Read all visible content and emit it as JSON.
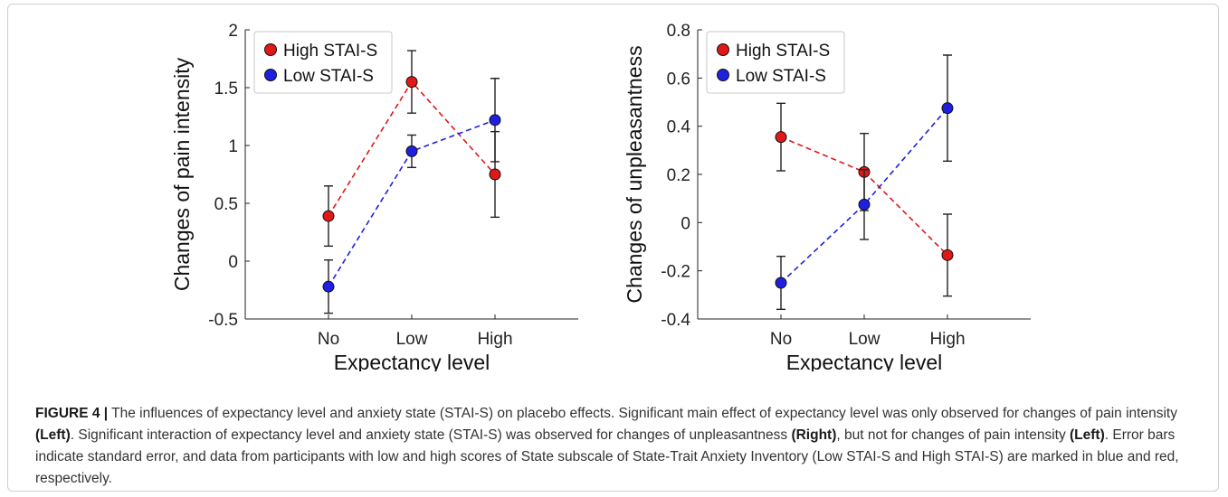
{
  "colors": {
    "high": "#e01818",
    "low": "#1f1fe0",
    "axis": "#222222"
  },
  "chart_data": [
    {
      "type": "line",
      "categories": [
        "No",
        "Low",
        "High"
      ],
      "xlabel": "Expectancy level",
      "ylabel": "Changes of pain intensity",
      "ylim": [
        -0.5,
        2
      ],
      "yticks": [
        -0.5,
        0,
        0.5,
        1,
        1.5,
        2
      ],
      "ytick_labels": [
        "-0.5",
        "0",
        "0.5",
        "1",
        "1.5",
        "2"
      ],
      "legend": "top-left",
      "series": [
        {
          "name": "High STAI-S",
          "values": [
            0.39,
            1.55,
            0.75
          ],
          "error": [
            0.26,
            0.27,
            0.37
          ]
        },
        {
          "name": "Low STAI-S",
          "values": [
            -0.22,
            0.95,
            1.22
          ],
          "error": [
            0.23,
            0.14,
            0.36
          ]
        }
      ]
    },
    {
      "type": "line",
      "categories": [
        "No",
        "Low",
        "High"
      ],
      "xlabel": "Expectancy level",
      "ylabel": "Changes of unpleasantness",
      "ylim": [
        -0.4,
        0.8
      ],
      "yticks": [
        -0.4,
        -0.2,
        0,
        0.2,
        0.4,
        0.6,
        0.8
      ],
      "ytick_labels": [
        "-0.4",
        "-0.2",
        "0",
        "0.2",
        "0.4",
        "0.6",
        "0.8"
      ],
      "legend": "top-left",
      "series": [
        {
          "name": "High STAI-S",
          "values": [
            0.355,
            0.21,
            -0.135
          ],
          "error": [
            0.14,
            0.16,
            0.17
          ]
        },
        {
          "name": "Low STAI-S",
          "values": [
            -0.25,
            0.075,
            0.475
          ],
          "error": [
            0.11,
            0.145,
            0.22
          ]
        }
      ]
    }
  ],
  "caption": {
    "figure_label": "FIGURE 4 |",
    "t1": " The influences of expectancy level and anxiety state (STAI-S) on placebo effects. Significant main effect of expectancy level was only observed for changes of pain intensity ",
    "b1": "(Left)",
    "t2": ". Significant interaction of expectancy level and anxiety state (STAI-S) was observed for changes of unpleasantness ",
    "b2": "(Right)",
    "t3": ", but not for changes of pain intensity ",
    "b3": "(Left)",
    "t4": ". Error bars indicate standard error, and data from participants with low and high scores of State subscale of State-Trait Anxiety Inventory (Low STAI-S and High STAI-S) are marked in blue and red, respectively."
  }
}
